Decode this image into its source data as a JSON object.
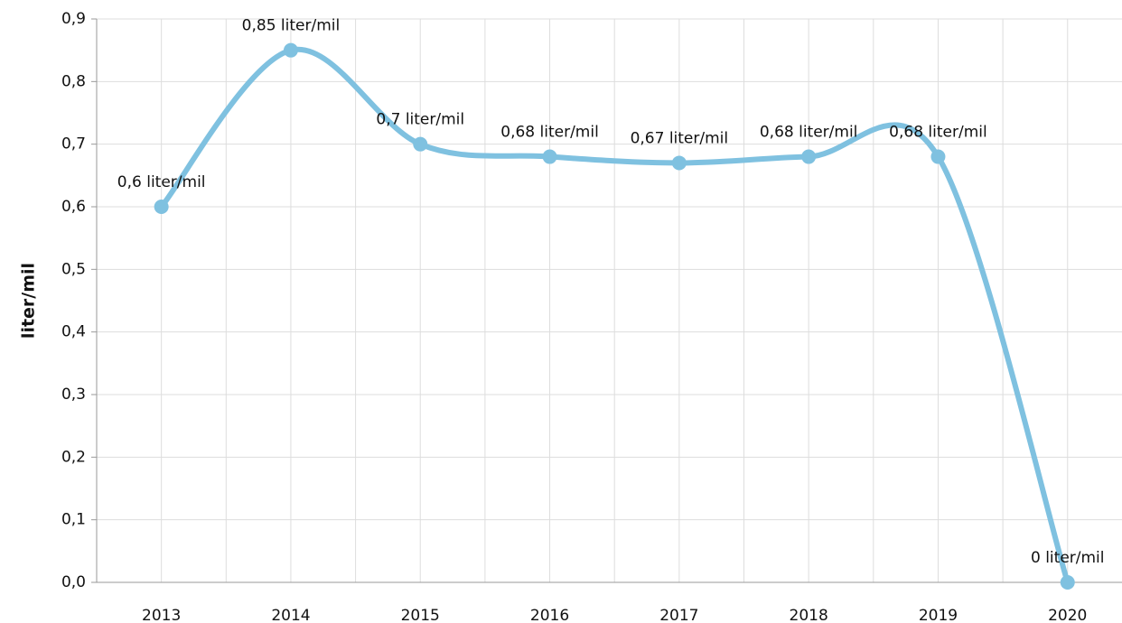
{
  "chart_data": {
    "type": "line",
    "y_label": "liter/mil",
    "categories": [
      "2013",
      "2014",
      "2015",
      "2016",
      "2017",
      "2018",
      "2019",
      "2020"
    ],
    "values": [
      0.6,
      0.85,
      0.7,
      0.68,
      0.67,
      0.68,
      0.68,
      0
    ],
    "value_labels": [
      "0,6 liter/mil",
      "0,85 liter/mil",
      "0,7 liter/mil",
      "0,68 liter/mil",
      "0,67 liter/mil",
      "0,68 liter/mil",
      "0,68 liter/mil",
      "0 liter/mil"
    ],
    "color": "#7fc1e0",
    "ylim": [
      0,
      0.9
    ],
    "yticks": [
      {
        "value": 0,
        "label": "0,0"
      },
      {
        "value": 0.1,
        "label": "0,1"
      },
      {
        "value": 0.2,
        "label": "0,2"
      },
      {
        "value": 0.3,
        "label": "0,3"
      },
      {
        "value": 0.4,
        "label": "0,4"
      },
      {
        "value": 0.5,
        "label": "0,5"
      },
      {
        "value": 0.6,
        "label": "0,6"
      },
      {
        "value": 0.7,
        "label": "0,7"
      },
      {
        "value": 0.8,
        "label": "0,8"
      },
      {
        "value": 0.9,
        "label": "0,9"
      }
    ],
    "grid": true
  }
}
